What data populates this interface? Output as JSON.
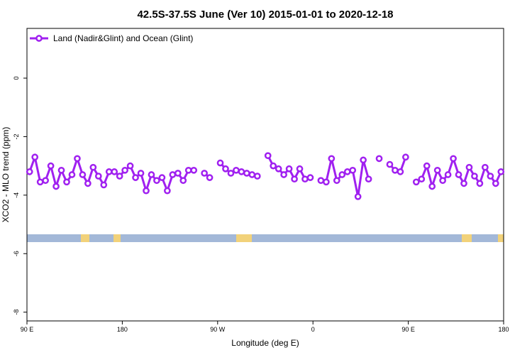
{
  "chart_data": {
    "type": "line",
    "title": "42.5S-37.5S June (Ver 10)   2015-01-01 to 2020-12-18",
    "x_label": "Longitude (deg E)",
    "y_label": "XCO2 - MLO trend (ppm)",
    "xlim": [
      90,
      540
    ],
    "ylim": [
      -8.3,
      1.7
    ],
    "xticks": [
      {
        "value": 90,
        "label": "90 E"
      },
      180,
      {
        "value": 270,
        "label": "90 W"
      },
      {
        "value": 360,
        "label": "0"
      },
      {
        "value": 450,
        "label": "90 E"
      },
      {
        "value": 540,
        "label": "180"
      }
    ],
    "yticks": [
      0,
      -2,
      -4,
      -6,
      -8
    ],
    "legend": "top-left",
    "x": [
      92.5,
      97.5,
      102.5,
      107.5,
      112.5,
      117.5,
      122.5,
      127.5,
      132.5,
      137.5,
      142.5,
      147.5,
      152.5,
      157.5,
      162.5,
      167.5,
      172.5,
      177.5,
      182.5,
      187.5,
      192.5,
      197.5,
      202.5,
      207.5,
      212.5,
      217.5,
      222.5,
      227.5,
      232.5,
      237.5,
      242.5,
      247.5,
      252.5,
      257.5,
      262.5,
      267.5,
      272.5,
      277.5,
      282.5,
      287.5,
      292.5,
      297.5,
      302.5,
      307.5,
      312.5,
      317.5,
      322.5,
      327.5,
      332.5,
      337.5,
      342.5,
      347.5,
      352.5,
      357.5,
      362.5,
      367.5,
      372.5,
      377.5,
      382.5,
      387.5,
      392.5,
      397.5,
      402.5,
      407.5,
      412.5,
      417.5,
      422.5,
      427.5,
      432.5,
      437.5,
      442.5,
      447.5,
      452.5,
      457.5,
      462.5,
      467.5,
      472.5,
      477.5,
      482.5,
      487.5,
      492.5,
      497.5,
      502.5,
      507.5,
      512.5,
      517.5,
      522.5,
      527.5,
      532.5,
      537.5
    ],
    "series": [
      {
        "name": "Land (Nadir&Glint) and Ocean (Glint)",
        "color": "#a020f0",
        "values": [
          -3.2,
          -2.7,
          -3.55,
          -3.5,
          -3.0,
          -3.7,
          -3.15,
          -3.55,
          -3.3,
          -2.75,
          -3.3,
          -3.6,
          -3.05,
          -3.35,
          -3.65,
          -3.2,
          -3.2,
          -3.35,
          -3.15,
          -3.0,
          -3.4,
          -3.25,
          -3.85,
          -3.3,
          -3.5,
          -3.4,
          -3.85,
          -3.3,
          -3.25,
          -3.5,
          -3.15,
          -3.15,
          null,
          -3.25,
          -3.4,
          null,
          -2.9,
          -3.1,
          -3.25,
          -3.15,
          -3.2,
          -3.25,
          -3.3,
          -3.35,
          null,
          -2.65,
          -3.0,
          -3.1,
          -3.3,
          -3.1,
          -3.45,
          -3.1,
          -3.45,
          -3.4,
          null,
          -3.5,
          -3.55,
          -2.75,
          -3.5,
          -3.3,
          -3.2,
          -3.15,
          -4.05,
          -2.8,
          -3.45,
          null,
          -2.75,
          null,
          -2.95,
          -3.15,
          -3.2,
          -2.7,
          null,
          -3.55,
          -3.45,
          -3.0,
          -3.7,
          -3.15,
          -3.5,
          -3.3,
          -2.75,
          -3.3,
          -3.6,
          -3.05,
          -3.35,
          -3.6,
          -3.05,
          -3.35,
          -3.6,
          -3.2
        ]
      }
    ]
  }
}
